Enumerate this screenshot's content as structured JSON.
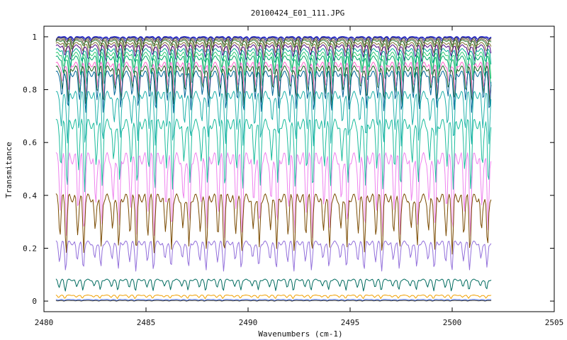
{
  "chart_data": {
    "type": "line",
    "title": "20100424_E01_111.JPG",
    "xlabel": "Wavenumbers (cm-1)",
    "ylabel": "Transmitance",
    "xlim": [
      2480,
      2505
    ],
    "ylim": [
      -0.04,
      1.04
    ],
    "x_ticks": [
      2480,
      2485,
      2490,
      2495,
      2500,
      2505
    ],
    "y_ticks": [
      0,
      0.2,
      0.4,
      0.6,
      0.8,
      1
    ],
    "x_tick_labels": [
      "2480",
      "2485",
      "2490",
      "2495",
      "2500",
      "2505"
    ],
    "y_tick_labels": [
      "0",
      "0.2",
      "0.4",
      "0.6",
      "0.8",
      "1"
    ],
    "x_range_data": [
      2480.6,
      2501.9
    ],
    "grid": false,
    "legend": false,
    "series": [
      {
        "baseline": 1.0,
        "depth": 0.01,
        "color": "#0000cc"
      },
      {
        "baseline": 0.998,
        "depth": 0.015,
        "color": "#2222aa"
      },
      {
        "baseline": 0.995,
        "depth": 0.02,
        "color": "#4b4b4b"
      },
      {
        "baseline": 0.99,
        "depth": 0.03,
        "color": "#6b4e2e"
      },
      {
        "baseline": 0.985,
        "depth": 0.035,
        "color": "#2e7d32"
      },
      {
        "baseline": 0.975,
        "depth": 0.05,
        "color": "#7d6b2e"
      },
      {
        "baseline": 0.965,
        "depth": 0.06,
        "color": "#4b0082"
      },
      {
        "baseline": 0.95,
        "depth": 0.07,
        "color": "#00a98f"
      },
      {
        "baseline": 0.935,
        "depth": 0.09,
        "color": "#2ecc71"
      },
      {
        "baseline": 0.92,
        "depth": 0.1,
        "color": "#00a86b"
      },
      {
        "baseline": 0.895,
        "depth": 0.12,
        "color": "#ff66cc"
      },
      {
        "baseline": 0.88,
        "depth": 0.13,
        "color": "#1b5e20"
      },
      {
        "baseline": 0.86,
        "depth": 0.14,
        "color": "#006699"
      },
      {
        "baseline": 0.78,
        "depth": 0.18,
        "color": "#20b2aa"
      },
      {
        "baseline": 0.67,
        "depth": 0.24,
        "color": "#1abc9c"
      },
      {
        "baseline": 0.54,
        "depth": 0.28,
        "color": "#ee82ee"
      },
      {
        "baseline": 0.39,
        "depth": 0.2,
        "color": "#7a4a00"
      },
      {
        "baseline": 0.22,
        "depth": 0.1,
        "color": "#9370db"
      },
      {
        "baseline": 0.08,
        "depth": 0.04,
        "color": "#006b5f"
      },
      {
        "baseline": 0.022,
        "depth": 0.012,
        "color": "#f0a000"
      },
      {
        "baseline": 0.006,
        "depth": 0.004,
        "color": "#4169e1"
      },
      {
        "baseline": 0.002,
        "depth": 0.002,
        "color": "#333333"
      }
    ]
  }
}
